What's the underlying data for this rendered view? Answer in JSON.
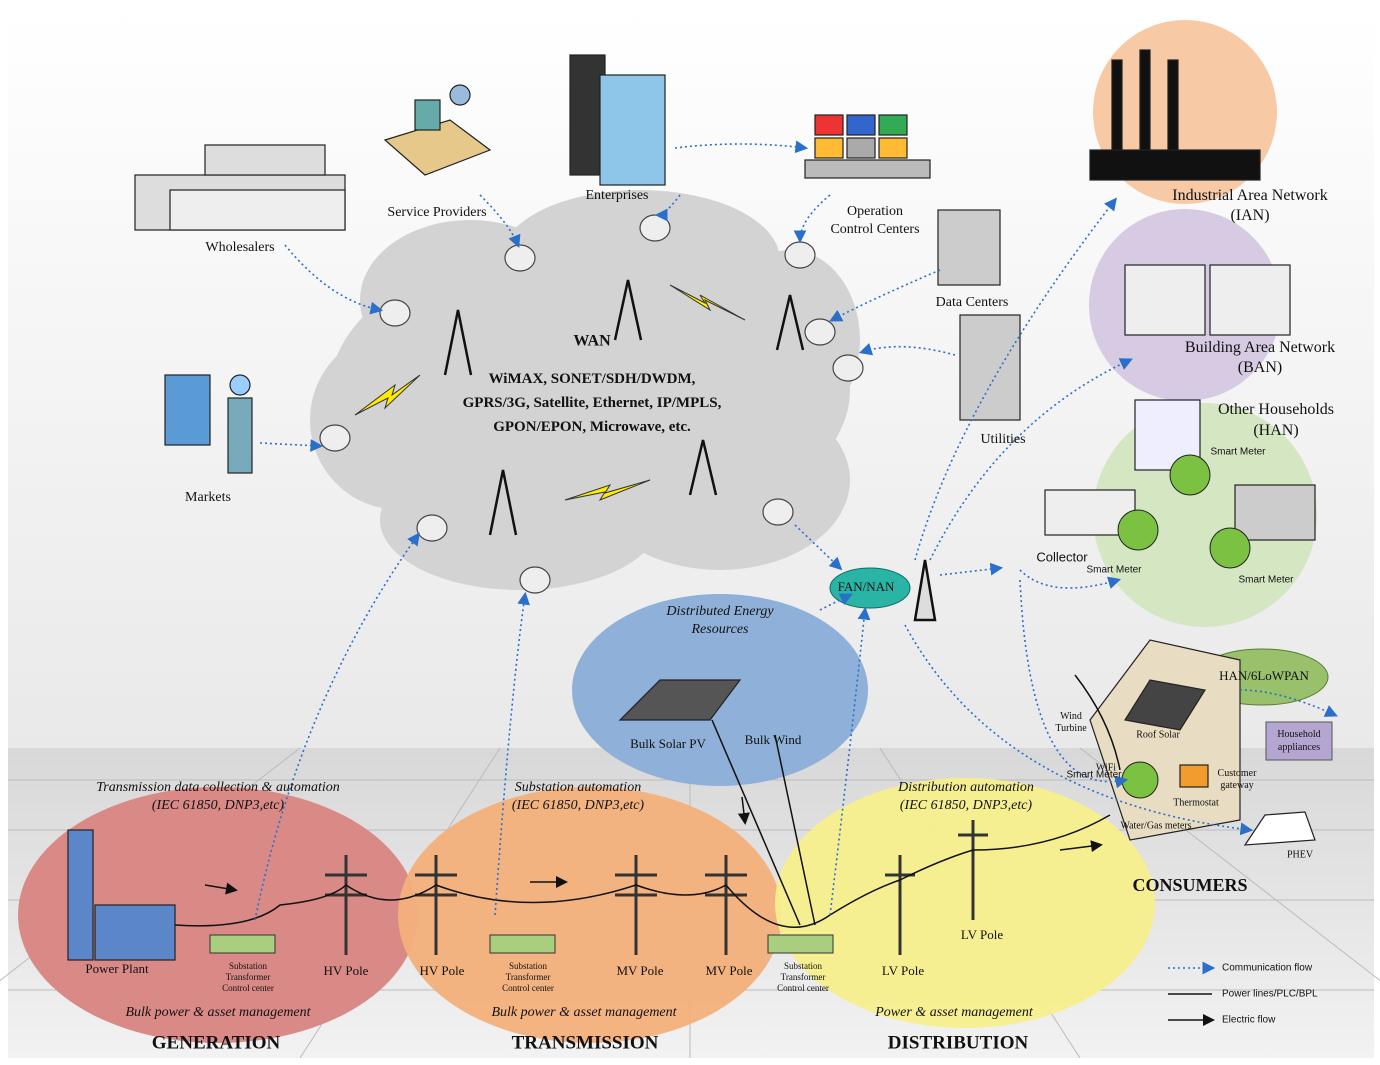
{
  "wan": {
    "title": "WAN",
    "technologies": [
      "WiMAX, SONET/SDH/DWDM,",
      "GPRS/3G, Satellite, Ethernet, IP/MPLS,",
      "GPON/EPON, Microwave, etc."
    ]
  },
  "wan_nodes": [
    {
      "lines": [
        "Wholesalers"
      ]
    },
    {
      "lines": [
        "Service Providers"
      ]
    },
    {
      "lines": [
        "Enterprises"
      ]
    },
    {
      "lines": [
        "Operation",
        "Control Centers"
      ]
    },
    {
      "lines": [
        "Data Centers"
      ]
    },
    {
      "lines": [
        "Utilities"
      ]
    },
    {
      "lines": [
        "Markets"
      ]
    }
  ],
  "area_networks": [
    {
      "lines": [
        "Industrial Area Network",
        "(IAN)"
      ]
    },
    {
      "lines": [
        "Building Area Network",
        "(BAN)"
      ]
    },
    {
      "lines": [
        "Other Households",
        "(HAN)"
      ]
    }
  ],
  "neighborhood": {
    "smart_meters": [
      "Smart Meter",
      "Smart Meter",
      "Smart Meter"
    ],
    "collector": "Collector",
    "fan_nan": "FAN/NAN"
  },
  "der": {
    "title": [
      "Distributed Energy",
      "Resources"
    ],
    "solar": "Bulk Solar PV",
    "wind": "Bulk Wind"
  },
  "consumers": {
    "han": "HAN/6LoWPAN",
    "appliances": [
      "Household",
      "appliances"
    ],
    "wind_turbine": [
      "Wind",
      "Turbine"
    ],
    "roof_solar": "Roof Solar",
    "wifi": "WiFi",
    "gateway": [
      "Customer",
      "gateway"
    ],
    "smart_meter": "Smart Meter",
    "thermostat": "Thermostat",
    "water_gas": "Water/Gas meters",
    "phev": "PHEV",
    "title": "CONSUMERS"
  },
  "zones": [
    {
      "automation": [
        "Transmission data collection & automation",
        "(IEC 61850, DNP3,etc)"
      ],
      "management": "Bulk power & asset management",
      "title": "GENERATION"
    },
    {
      "automation": [
        "Substation automation",
        "(IEC 61850, DNP3,etc)"
      ],
      "management": "Bulk power & asset management",
      "title": "TRANSMISSION"
    },
    {
      "automation": [
        "Distribution automation",
        "(IEC 61850, DNP3,etc)"
      ],
      "management": "Power & asset management",
      "title": "DISTRIBUTION"
    }
  ],
  "assets": [
    {
      "lines": [
        "Power Plant"
      ]
    },
    {
      "lines": [
        "Substation",
        "Transformer",
        "Control center"
      ]
    },
    {
      "lines": [
        "HV Pole"
      ]
    },
    {
      "lines": [
        "HV Pole"
      ]
    },
    {
      "lines": [
        "Substation",
        "Transformer",
        "Control center"
      ]
    },
    {
      "lines": [
        "MV Pole"
      ]
    },
    {
      "lines": [
        "MV Pole"
      ]
    },
    {
      "lines": [
        "Substation",
        "Transformer",
        "Control center"
      ]
    },
    {
      "lines": [
        "LV Pole"
      ]
    },
    {
      "lines": [
        "LV Pole"
      ]
    }
  ],
  "legend": [
    "Communication flow",
    "Power lines/PLC/BPL",
    "Electric flow"
  ]
}
